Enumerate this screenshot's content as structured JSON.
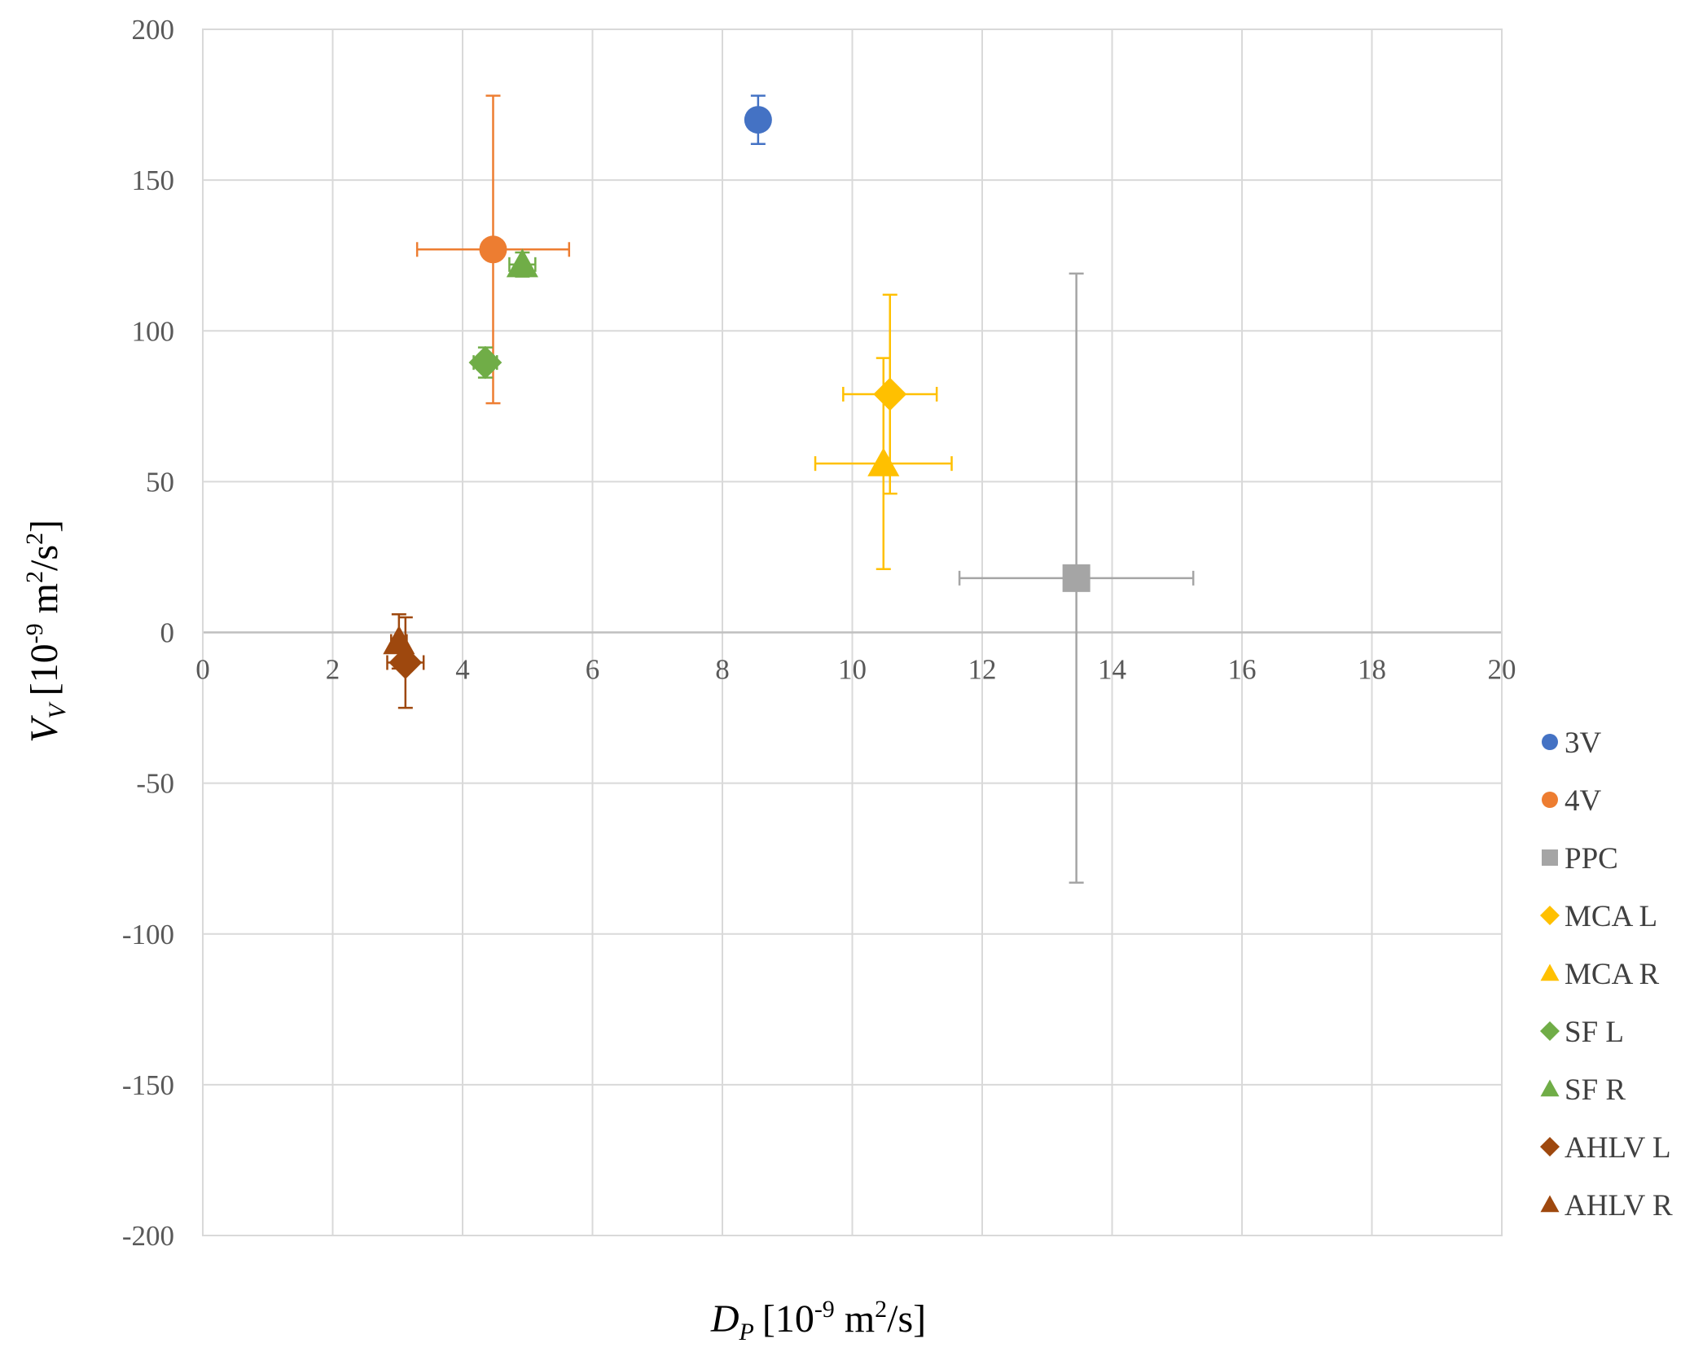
{
  "chart_data": {
    "type": "scatter",
    "title": "",
    "xlabel": {
      "var": "D",
      "sub": "P",
      "pre": "[10",
      "exp1": "-9",
      "mid": " m",
      "exp2": "2",
      "post": "/s]"
    },
    "ylabel": {
      "var": "V",
      "sub": "V",
      "pre": "[10",
      "exp1": "-9",
      "mid": " m",
      "exp2": "2",
      "mid2": "/s",
      "exp3": "2",
      "post": "]"
    },
    "xlim": [
      0,
      20
    ],
    "ylim": [
      -200,
      200
    ],
    "x_ticks": [
      0,
      2,
      4,
      6,
      8,
      10,
      12,
      14,
      16,
      18,
      20
    ],
    "y_ticks": [
      200,
      150,
      100,
      50,
      0,
      -50,
      -100,
      -150,
      -200
    ],
    "x_tick_labels": [
      "0",
      "2",
      "4",
      "6",
      "8",
      "10",
      "12",
      "14",
      "16",
      "18",
      "20"
    ],
    "y_tick_labels": [
      "200",
      "150",
      "100",
      "50",
      "0",
      "-50",
      "-100",
      "-150",
      "-200"
    ],
    "grid": true,
    "legend_position": "right",
    "series": [
      {
        "name": "3V",
        "marker": "circle",
        "color": "#4472C4",
        "x": 8.55,
        "y": 170,
        "xerr": null,
        "yerr": [
          8,
          8
        ]
      },
      {
        "name": "4V",
        "marker": "circle",
        "color": "#ED7D31",
        "x": 4.47,
        "y": 127,
        "xerr": [
          1.17,
          1.17
        ],
        "yerr": [
          51,
          51
        ]
      },
      {
        "name": "PPC",
        "marker": "square",
        "color": "#A5A5A5",
        "x": 13.45,
        "y": 18,
        "xerr": [
          1.8,
          1.8
        ],
        "yerr": [
          101,
          101
        ]
      },
      {
        "name": "MCA L",
        "marker": "diamond",
        "color": "#FFC000",
        "x": 10.58,
        "y": 79,
        "xerr": [
          0.72,
          0.72
        ],
        "yerr": [
          33,
          33
        ]
      },
      {
        "name": "MCA R",
        "marker": "triangle",
        "color": "#FFC000",
        "x": 10.48,
        "y": 56,
        "xerr": [
          1.05,
          1.05
        ],
        "yerr": [
          35,
          35
        ]
      },
      {
        "name": "SF L",
        "marker": "diamond",
        "color": "#70AD47",
        "x": 4.35,
        "y": 89.5,
        "xerr": [
          0.18,
          0.18
        ],
        "yerr": [
          5,
          5
        ]
      },
      {
        "name": "SF R",
        "marker": "triangle",
        "color": "#70AD47",
        "x": 4.92,
        "y": 122,
        "xerr": [
          0.2,
          0.2
        ],
        "yerr": [
          4,
          4
        ]
      },
      {
        "name": "AHLV L",
        "marker": "diamond",
        "color": "#9E480E",
        "x": 3.12,
        "y": -10,
        "xerr": [
          0.28,
          0.28
        ],
        "yerr": [
          15,
          15
        ]
      },
      {
        "name": "AHLV R",
        "marker": "triangle",
        "color": "#9E480E",
        "x": 3.02,
        "y": -3,
        "xerr": [
          0.12,
          0.12
        ],
        "yerr": [
          9,
          9
        ]
      }
    ]
  }
}
